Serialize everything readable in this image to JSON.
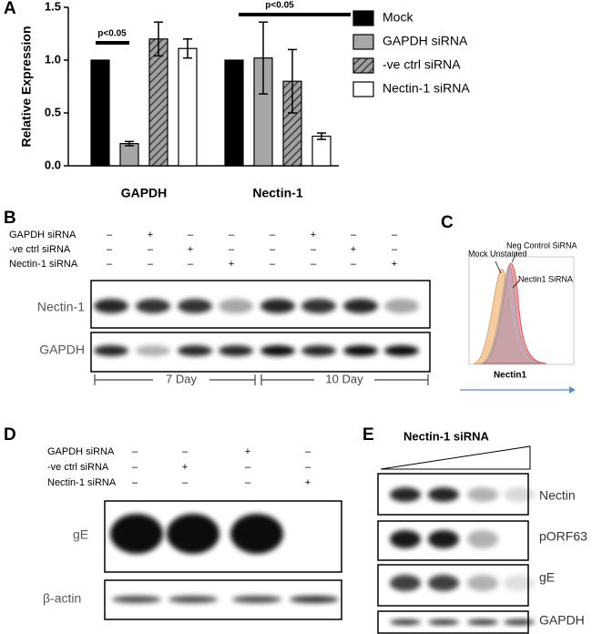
{
  "chart_data": {
    "type": "bar",
    "panel": "A",
    "ylabel": "Relative Expression",
    "categories": [
      "GAPDH",
      "Nectin-1"
    ],
    "series": [
      {
        "name": "Mock",
        "color": "#000000",
        "values": [
          1.0,
          1.0
        ]
      },
      {
        "name": "GAPDH siRNA",
        "color": "#a6a6a6",
        "values": [
          0.21,
          1.02
        ],
        "errors": [
          0.02,
          0.34
        ]
      },
      {
        "name": "-ve ctrl siRNA",
        "color": "#7f7f7f",
        "hatch": true,
        "values": [
          1.2,
          0.8
        ],
        "errors": [
          0.16,
          0.3
        ]
      },
      {
        "name": "Nectin-1 siRNA",
        "color": "#ffffff",
        "values": [
          1.11,
          0.28
        ],
        "errors": [
          0.09,
          0.03
        ]
      }
    ],
    "ylim": [
      0,
      1.5
    ],
    "yticks": [
      {
        "value": 0,
        "label": "0.0"
      },
      0.5,
      {
        "value": 1,
        "label": "1.0"
      },
      1.5
    ],
    "annotations": [
      {
        "text": "p<0.05"
      },
      {
        "text": "p<0.05"
      }
    ]
  },
  "panel_b": {
    "label": "B",
    "rows": [
      "GAPDH siRNA",
      "-ve ctrl siRNA",
      "Nectin-1 siRNA"
    ],
    "signs": [
      [
        "–",
        "+",
        "–",
        "–",
        "–",
        "+",
        "–",
        "–"
      ],
      [
        "–",
        "–",
        "+",
        "–",
        "–",
        "–",
        "+",
        "–"
      ],
      [
        "–",
        "–",
        "–",
        "+",
        "–",
        "–",
        "–",
        "+"
      ]
    ],
    "blots": [
      "Nectin-1",
      "GAPDH"
    ],
    "timepoints": [
      "7 Day",
      "10 Day"
    ]
  },
  "panel_c": {
    "label": "C",
    "labels": [
      "Mock Unstained",
      "Neg Control SiRNA",
      "Nectin1 SiRNA"
    ],
    "xlabel": "Nectin1"
  },
  "panel_d": {
    "label": "D",
    "rows": [
      "GAPDH siRNA",
      "-ve ctrl siRNA",
      "Nectin-1 siRNA"
    ],
    "signs": [
      [
        "–",
        "–",
        "+",
        "–"
      ],
      [
        "–",
        "+",
        "–",
        "–"
      ],
      [
        "–",
        "–",
        "–",
        "+"
      ]
    ],
    "blots": [
      "gE",
      "β-actin"
    ]
  },
  "panel_e": {
    "label": "E",
    "title": "Nectin-1 siRNA",
    "blots": [
      "Nectin",
      "pORF63",
      "gE",
      "GAPDH"
    ]
  }
}
